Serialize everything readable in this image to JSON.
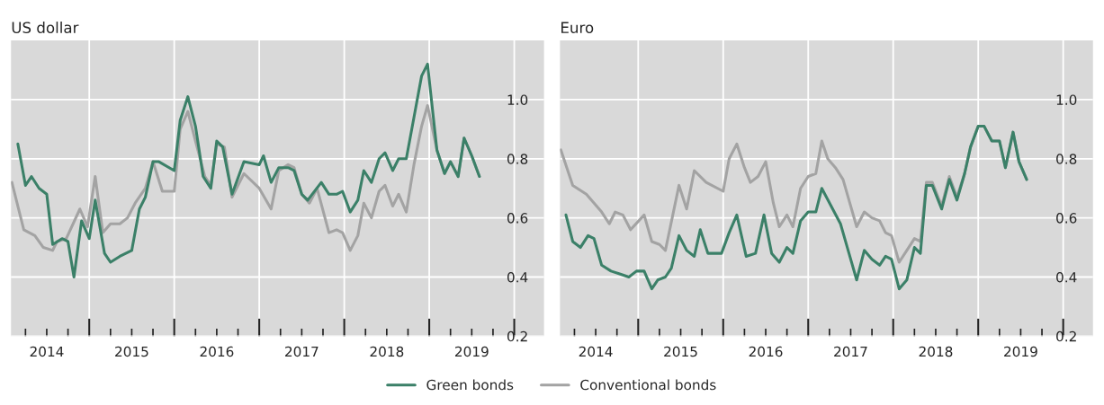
{
  "chart_data": [
    {
      "type": "line",
      "title": "US dollar",
      "xlim": [
        2014.08,
        2020.35
      ],
      "ylim": [
        0.2,
        1.2
      ],
      "yticks": [
        0.2,
        0.4,
        0.6,
        0.8,
        {
          "value": 1,
          "label": "1.0"
        }
      ],
      "xticks": [
        {
          "value": 2014.25,
          "label": null
        },
        {
          "value": 2014.5,
          "label": "2014"
        },
        {
          "value": 2014.75,
          "label": null
        },
        {
          "value": 2015,
          "label": null
        },
        {
          "value": 2015.25,
          "label": null
        },
        {
          "value": 2015.5,
          "label": "2015"
        },
        {
          "value": 2015.75,
          "label": null
        },
        {
          "value": 2016,
          "label": null
        },
        {
          "value": 2016.25,
          "label": null
        },
        {
          "value": 2016.5,
          "label": "2016"
        },
        {
          "value": 2016.75,
          "label": null
        },
        {
          "value": 2017,
          "label": null
        },
        {
          "value": 2017.25,
          "label": null
        },
        {
          "value": 2017.5,
          "label": "2017"
        },
        {
          "value": 2017.75,
          "label": null
        },
        {
          "value": 2018,
          "label": null
        },
        {
          "value": 2018.25,
          "label": null
        },
        {
          "value": 2018.5,
          "label": "2018"
        },
        {
          "value": 2018.75,
          "label": null
        },
        {
          "value": 2019,
          "label": null
        },
        {
          "value": 2019.25,
          "label": null
        },
        {
          "value": 2019.5,
          "label": "2019"
        },
        {
          "value": 2019.75,
          "label": null
        },
        {
          "value": 2020,
          "label": null
        }
      ],
      "grid": true,
      "legend": "bottom",
      "series": [
        {
          "name": "Conventional bonds",
          "color": "#a3a3a3",
          "x": [
            2014.09,
            2014.23,
            2014.36,
            2014.46,
            2014.57,
            2014.62,
            2014.73,
            2014.89,
            2014.98,
            2015.07,
            2015.16,
            2015.25,
            2015.36,
            2015.45,
            2015.54,
            2015.66,
            2015.75,
            2015.86,
            2016.0,
            2016.07,
            2016.16,
            2016.25,
            2016.36,
            2016.43,
            2016.5,
            2016.59,
            2016.68,
            2016.82,
            2017.0,
            2017.14,
            2017.23,
            2017.34,
            2017.41,
            2017.5,
            2017.59,
            2017.68,
            2017.82,
            2017.91,
            2017.98,
            2018.07,
            2018.16,
            2018.23,
            2018.32,
            2018.41,
            2018.48,
            2018.57,
            2018.64,
            2018.73,
            2018.82,
            2018.91,
            2018.98,
            2019.09,
            2019.18,
            2019.25,
            2019.34,
            2019.41,
            2019.5,
            2019.59
          ],
          "values": [
            0.72,
            0.56,
            0.54,
            0.5,
            0.49,
            0.52,
            0.53,
            0.63,
            0.57,
            0.74,
            0.55,
            0.58,
            0.58,
            0.6,
            0.65,
            0.7,
            0.79,
            0.69,
            0.69,
            0.9,
            0.96,
            0.86,
            0.74,
            0.71,
            0.85,
            0.84,
            0.67,
            0.75,
            0.7,
            0.63,
            0.76,
            0.78,
            0.77,
            0.68,
            0.65,
            0.7,
            0.55,
            0.56,
            0.55,
            0.49,
            0.54,
            0.65,
            0.6,
            0.69,
            0.71,
            0.64,
            0.68,
            0.62,
            0.78,
            0.91,
            0.98,
            0.83,
            0.75,
            0.79,
            0.74,
            0.87,
            0.81,
            0.74
          ]
        },
        {
          "name": "Green bonds",
          "color": "#3b8068",
          "x": [
            2014.16,
            2014.25,
            2014.32,
            2014.41,
            2014.5,
            2014.57,
            2014.68,
            2014.75,
            2014.82,
            2014.91,
            2015.0,
            2015.07,
            2015.18,
            2015.25,
            2015.36,
            2015.43,
            2015.5,
            2015.59,
            2015.66,
            2015.75,
            2015.82,
            2016.0,
            2016.07,
            2016.16,
            2016.25,
            2016.34,
            2016.43,
            2016.5,
            2016.57,
            2016.68,
            2016.82,
            2017.0,
            2017.05,
            2017.14,
            2017.23,
            2017.34,
            2017.41,
            2017.5,
            2017.57,
            2017.73,
            2017.82,
            2017.91,
            2017.98,
            2018.07,
            2018.16,
            2018.23,
            2018.32,
            2018.41,
            2018.48,
            2018.57,
            2018.64,
            2018.73,
            2018.82,
            2018.91,
            2018.98,
            2019.09,
            2019.18,
            2019.25,
            2019.34,
            2019.41,
            2019.5,
            2019.59
          ],
          "values": [
            0.85,
            0.71,
            0.74,
            0.7,
            0.68,
            0.51,
            0.53,
            0.52,
            0.4,
            0.59,
            0.53,
            0.66,
            0.48,
            0.45,
            0.47,
            0.48,
            0.49,
            0.63,
            0.67,
            0.79,
            0.79,
            0.76,
            0.93,
            1.01,
            0.91,
            0.74,
            0.7,
            0.86,
            0.84,
            0.68,
            0.79,
            0.78,
            0.81,
            0.72,
            0.77,
            0.77,
            0.76,
            0.68,
            0.66,
            0.72,
            0.68,
            0.68,
            0.69,
            0.62,
            0.66,
            0.76,
            0.72,
            0.8,
            0.82,
            0.76,
            0.8,
            0.8,
            0.94,
            1.08,
            1.12,
            0.83,
            0.75,
            0.79,
            0.74,
            0.87,
            0.81,
            0.74
          ]
        }
      ]
    },
    {
      "type": "line",
      "title": "Euro",
      "xlim": [
        2014.08,
        2020.35
      ],
      "ylim": [
        0.2,
        1.2
      ],
      "yticks": [
        0.2,
        0.4,
        0.6,
        0.8,
        {
          "value": 1,
          "label": "1.0"
        }
      ],
      "xticks": [
        {
          "value": 2014.25,
          "label": null
        },
        {
          "value": 2014.5,
          "label": "2014"
        },
        {
          "value": 2014.75,
          "label": null
        },
        {
          "value": 2015,
          "label": null
        },
        {
          "value": 2015.25,
          "label": null
        },
        {
          "value": 2015.5,
          "label": "2015"
        },
        {
          "value": 2015.75,
          "label": null
        },
        {
          "value": 2016,
          "label": null
        },
        {
          "value": 2016.25,
          "label": null
        },
        {
          "value": 2016.5,
          "label": "2016"
        },
        {
          "value": 2016.75,
          "label": null
        },
        {
          "value": 2017,
          "label": null
        },
        {
          "value": 2017.25,
          "label": null
        },
        {
          "value": 2017.5,
          "label": "2017"
        },
        {
          "value": 2017.75,
          "label": null
        },
        {
          "value": 2018,
          "label": null
        },
        {
          "value": 2018.25,
          "label": null
        },
        {
          "value": 2018.5,
          "label": "2018"
        },
        {
          "value": 2018.75,
          "label": null
        },
        {
          "value": 2019,
          "label": null
        },
        {
          "value": 2019.25,
          "label": null
        },
        {
          "value": 2019.5,
          "label": "2019"
        },
        {
          "value": 2019.75,
          "label": null
        },
        {
          "value": 2020,
          "label": null
        }
      ],
      "grid": true,
      "series": [
        {
          "color": "#a3a3a3",
          "x": [
            2014.09,
            2014.23,
            2014.39,
            2014.57,
            2014.66,
            2014.73,
            2014.82,
            2014.91,
            2015.07,
            2015.16,
            2015.25,
            2015.32,
            2015.48,
            2015.57,
            2015.66,
            2015.8,
            2016.0,
            2016.07,
            2016.16,
            2016.25,
            2016.32,
            2016.41,
            2016.5,
            2016.59,
            2016.66,
            2016.75,
            2016.82,
            2016.91,
            2017.0,
            2017.09,
            2017.16,
            2017.23,
            2017.32,
            2017.41,
            2017.48,
            2017.57,
            2017.66,
            2017.75,
            2017.84,
            2017.91,
            2017.98,
            2018.07,
            2018.16,
            2018.25,
            2018.32,
            2018.39,
            2018.46,
            2018.57,
            2018.66,
            2018.75,
            2018.84,
            2018.91,
            2019.0,
            2019.07,
            2019.16,
            2019.25,
            2019.32,
            2019.41,
            2019.48,
            2019.57
          ],
          "values": [
            0.83,
            0.71,
            0.68,
            0.62,
            0.58,
            0.62,
            0.61,
            0.56,
            0.61,
            0.52,
            0.51,
            0.49,
            0.71,
            0.63,
            0.76,
            0.72,
            0.69,
            0.8,
            0.85,
            0.77,
            0.72,
            0.74,
            0.79,
            0.65,
            0.57,
            0.61,
            0.57,
            0.7,
            0.74,
            0.75,
            0.86,
            0.8,
            0.77,
            0.73,
            0.66,
            0.57,
            0.62,
            0.6,
            0.59,
            0.55,
            0.54,
            0.45,
            0.49,
            0.53,
            0.52,
            0.72,
            0.72,
            0.64,
            0.74,
            0.67,
            0.75,
            0.84,
            0.91,
            0.91,
            0.86,
            0.86,
            0.77,
            0.89,
            0.79,
            0.73
          ]
        },
        {
          "color": "#3b8068",
          "x": [
            2014.15,
            2014.23,
            2014.32,
            2014.41,
            2014.48,
            2014.57,
            2014.68,
            2014.79,
            2014.89,
            2014.98,
            2015.07,
            2015.16,
            2015.23,
            2015.32,
            2015.39,
            2015.48,
            2015.57,
            2015.66,
            2015.73,
            2015.82,
            2015.98,
            2016.07,
            2016.16,
            2016.27,
            2016.38,
            2016.48,
            2016.57,
            2016.66,
            2016.75,
            2016.82,
            2016.91,
            2017.0,
            2017.09,
            2017.16,
            2017.27,
            2017.38,
            2017.48,
            2017.57,
            2017.66,
            2017.75,
            2017.84,
            2017.91,
            2017.98,
            2018.07,
            2018.16,
            2018.25,
            2018.32,
            2018.39,
            2018.46,
            2018.57,
            2018.66,
            2018.75,
            2018.84,
            2018.91,
            2019.0,
            2019.07,
            2019.16,
            2019.25,
            2019.32,
            2019.41,
            2019.48,
            2019.57
          ],
          "values": [
            0.61,
            0.52,
            0.5,
            0.54,
            0.53,
            0.44,
            0.42,
            0.41,
            0.4,
            0.42,
            0.42,
            0.36,
            0.39,
            0.4,
            0.43,
            0.54,
            0.49,
            0.47,
            0.56,
            0.48,
            0.48,
            0.55,
            0.61,
            0.47,
            0.48,
            0.61,
            0.48,
            0.45,
            0.5,
            0.48,
            0.59,
            0.62,
            0.62,
            0.7,
            0.64,
            0.58,
            0.48,
            0.39,
            0.49,
            0.46,
            0.44,
            0.47,
            0.46,
            0.36,
            0.39,
            0.5,
            0.48,
            0.71,
            0.71,
            0.63,
            0.73,
            0.66,
            0.75,
            0.84,
            0.91,
            0.91,
            0.86,
            0.86,
            0.77,
            0.89,
            0.79,
            0.73
          ]
        }
      ]
    }
  ]
}
